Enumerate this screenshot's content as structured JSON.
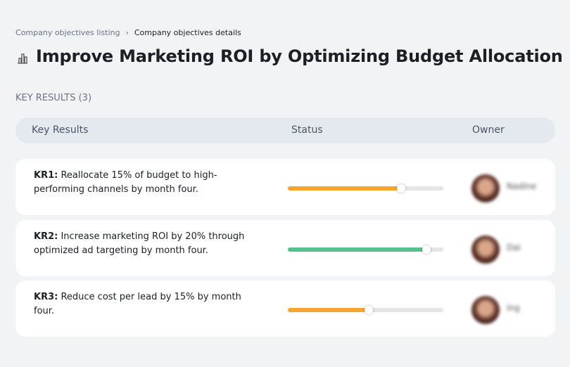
{
  "breadcrumb": {
    "items": [
      "Company objectives listing",
      "Company objectives details"
    ]
  },
  "title": "Improve Marketing ROI by Optimizing Budget Allocation",
  "section_label": "KEY RESULTS (3)",
  "table": {
    "columns": [
      "Key Results",
      "Status",
      "Owner"
    ],
    "rows": [
      {
        "label": "KR1:",
        "text": "Reallocate 15% of budget to high-performing channels by month four.",
        "progress": 73,
        "color": "#f6a530",
        "owner": "Nadine"
      },
      {
        "label": "KR2:",
        "text": "Increase marketing ROI by 20% through optimized ad targeting by month four.",
        "progress": 89,
        "color": "#55c18c",
        "owner": "Dai"
      },
      {
        "label": "KR3:",
        "text": "Reduce cost per lead by 15% by month four.",
        "progress": 52,
        "color": "#f6a530",
        "owner": "Ing"
      }
    ]
  }
}
